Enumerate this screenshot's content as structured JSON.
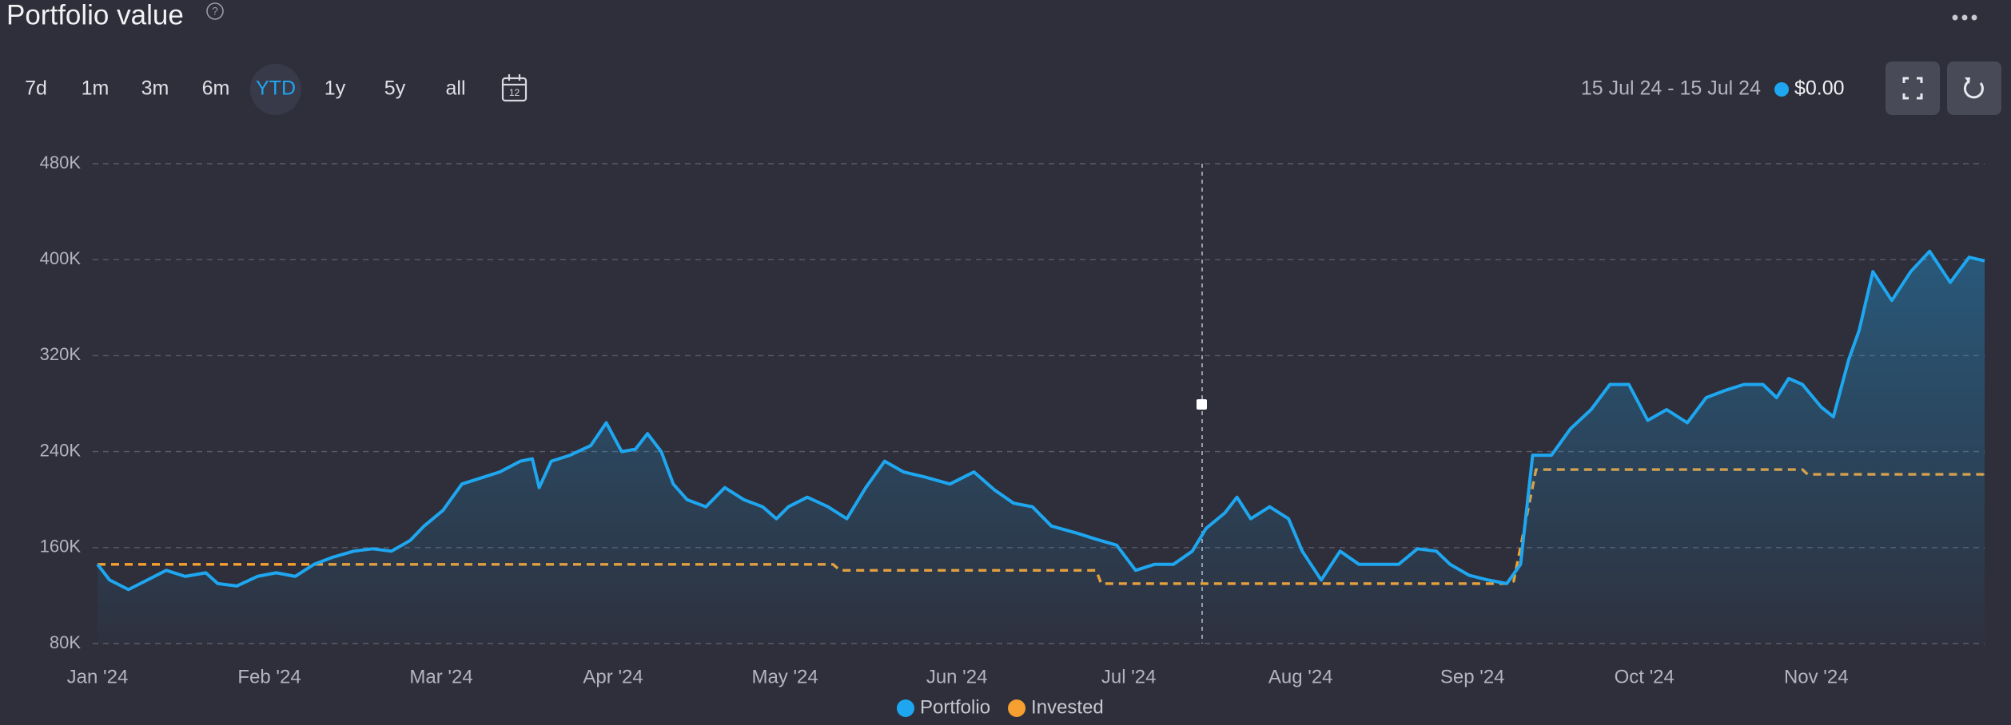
{
  "header": {
    "title": "Portfolio value",
    "help": "?"
  },
  "controls": {
    "ranges": [
      "7d",
      "1m",
      "3m",
      "6m",
      "YTD",
      "1y",
      "5y",
      "all"
    ],
    "selected": "YTD",
    "calendar_day": "12"
  },
  "tooltip": {
    "date_range": "15 Jul 24 - 15 Jul 24",
    "value": "$0.00"
  },
  "chart_data": {
    "type": "line",
    "area": true,
    "grid": true,
    "xlim": [
      0,
      10.98
    ],
    "xticks": [
      {
        "value": 0,
        "label": "Jan '24"
      },
      {
        "value": 1,
        "label": "Feb '24"
      },
      {
        "value": 2,
        "label": "Mar '24"
      },
      {
        "value": 3,
        "label": "Apr '24"
      },
      {
        "value": 4,
        "label": "May '24"
      },
      {
        "value": 5,
        "label": "Jun '24"
      },
      {
        "value": 6,
        "label": "Jul '24"
      },
      {
        "value": 7,
        "label": "Aug '24"
      },
      {
        "value": 8,
        "label": "Sep '24"
      },
      {
        "value": 9,
        "label": "Oct '24"
      },
      {
        "value": 10,
        "label": "Nov '24"
      }
    ],
    "ylim": [
      80000,
      480000
    ],
    "yticks": [
      {
        "value": 80000,
        "label": "80K"
      },
      {
        "value": 160000,
        "label": "160K"
      },
      {
        "value": 240000,
        "label": "240K"
      },
      {
        "value": 320000,
        "label": "320K"
      },
      {
        "value": 400000,
        "label": "400K"
      },
      {
        "value": 480000,
        "label": "480K"
      }
    ],
    "series": [
      {
        "name": "Portfolio",
        "color": "#1ea7f0",
        "dashed": false,
        "x": [
          0,
          0.07,
          0.18,
          0.29,
          0.4,
          0.51,
          0.63,
          0.7,
          0.81,
          0.93,
          1.04,
          1.15,
          1.26,
          1.37,
          1.49,
          1.6,
          1.71,
          1.82,
          1.9,
          2.01,
          2.12,
          2.23,
          2.34,
          2.46,
          2.53,
          2.57,
          2.64,
          2.75,
          2.87,
          2.96,
          3.05,
          3.13,
          3.2,
          3.28,
          3.35,
          3.43,
          3.54,
          3.65,
          3.76,
          3.87,
          3.95,
          4.02,
          4.13,
          4.25,
          4.36,
          4.47,
          4.58,
          4.69,
          4.81,
          4.96,
          5.1,
          5.22,
          5.33,
          5.44,
          5.55,
          5.7,
          5.81,
          5.93,
          6.04,
          6.15,
          6.26,
          6.37,
          6.45,
          6.56,
          6.63,
          6.71,
          6.82,
          6.93,
          7.01,
          7.12,
          7.23,
          7.34,
          7.46,
          7.57,
          7.68,
          7.79,
          7.87,
          7.98,
          8.09,
          8.2,
          8.28,
          8.35,
          8.46,
          8.57,
          8.69,
          8.8,
          8.91,
          9.02,
          9.13,
          9.25,
          9.36,
          9.47,
          9.58,
          9.69,
          9.77,
          9.84,
          9.92,
          10.03,
          10.1,
          10.19,
          10.25,
          10.33,
          10.44,
          10.55,
          10.66,
          10.78,
          10.89,
          10.98
        ],
        "values": [
          146000,
          133000,
          125000,
          133000,
          141000,
          136000,
          139000,
          130000,
          128000,
          136000,
          139000,
          136000,
          146000,
          152000,
          157000,
          159000,
          157000,
          166000,
          178000,
          191000,
          213000,
          218000,
          223000,
          232000,
          234000,
          210000,
          232000,
          237000,
          245000,
          264000,
          240000,
          242000,
          255000,
          240000,
          213000,
          200000,
          194000,
          210000,
          200000,
          194000,
          184000,
          194000,
          202000,
          194000,
          184000,
          210000,
          232000,
          223000,
          219000,
          213000,
          223000,
          208000,
          197000,
          194000,
          178000,
          172000,
          167000,
          162000,
          141000,
          146000,
          146000,
          157000,
          176000,
          189000,
          202000,
          184000,
          194000,
          184000,
          157000,
          133000,
          157000,
          146000,
          146000,
          146000,
          159000,
          157000,
          146000,
          137000,
          133000,
          130000,
          146000,
          237000,
          237000,
          259000,
          275000,
          296000,
          296000,
          266000,
          275000,
          264000,
          285000,
          291000,
          296000,
          296000,
          285000,
          301000,
          296000,
          277000,
          269000,
          317000,
          341000,
          390000,
          366000,
          390000,
          407000,
          381000,
          402000,
          399000
        ]
      },
      {
        "name": "Invested",
        "color": "#f5a030",
        "dashed": true,
        "x": [
          0,
          4.28,
          4.32,
          5.81,
          5.84,
          8.2,
          8.24,
          8.37,
          9.92,
          9.95,
          10.97,
          10.98
        ],
        "values": [
          146000,
          146000,
          141000,
          141000,
          130000,
          130000,
          132000,
          225000,
          225000,
          221000,
          221000,
          218000
        ]
      }
    ]
  }
}
